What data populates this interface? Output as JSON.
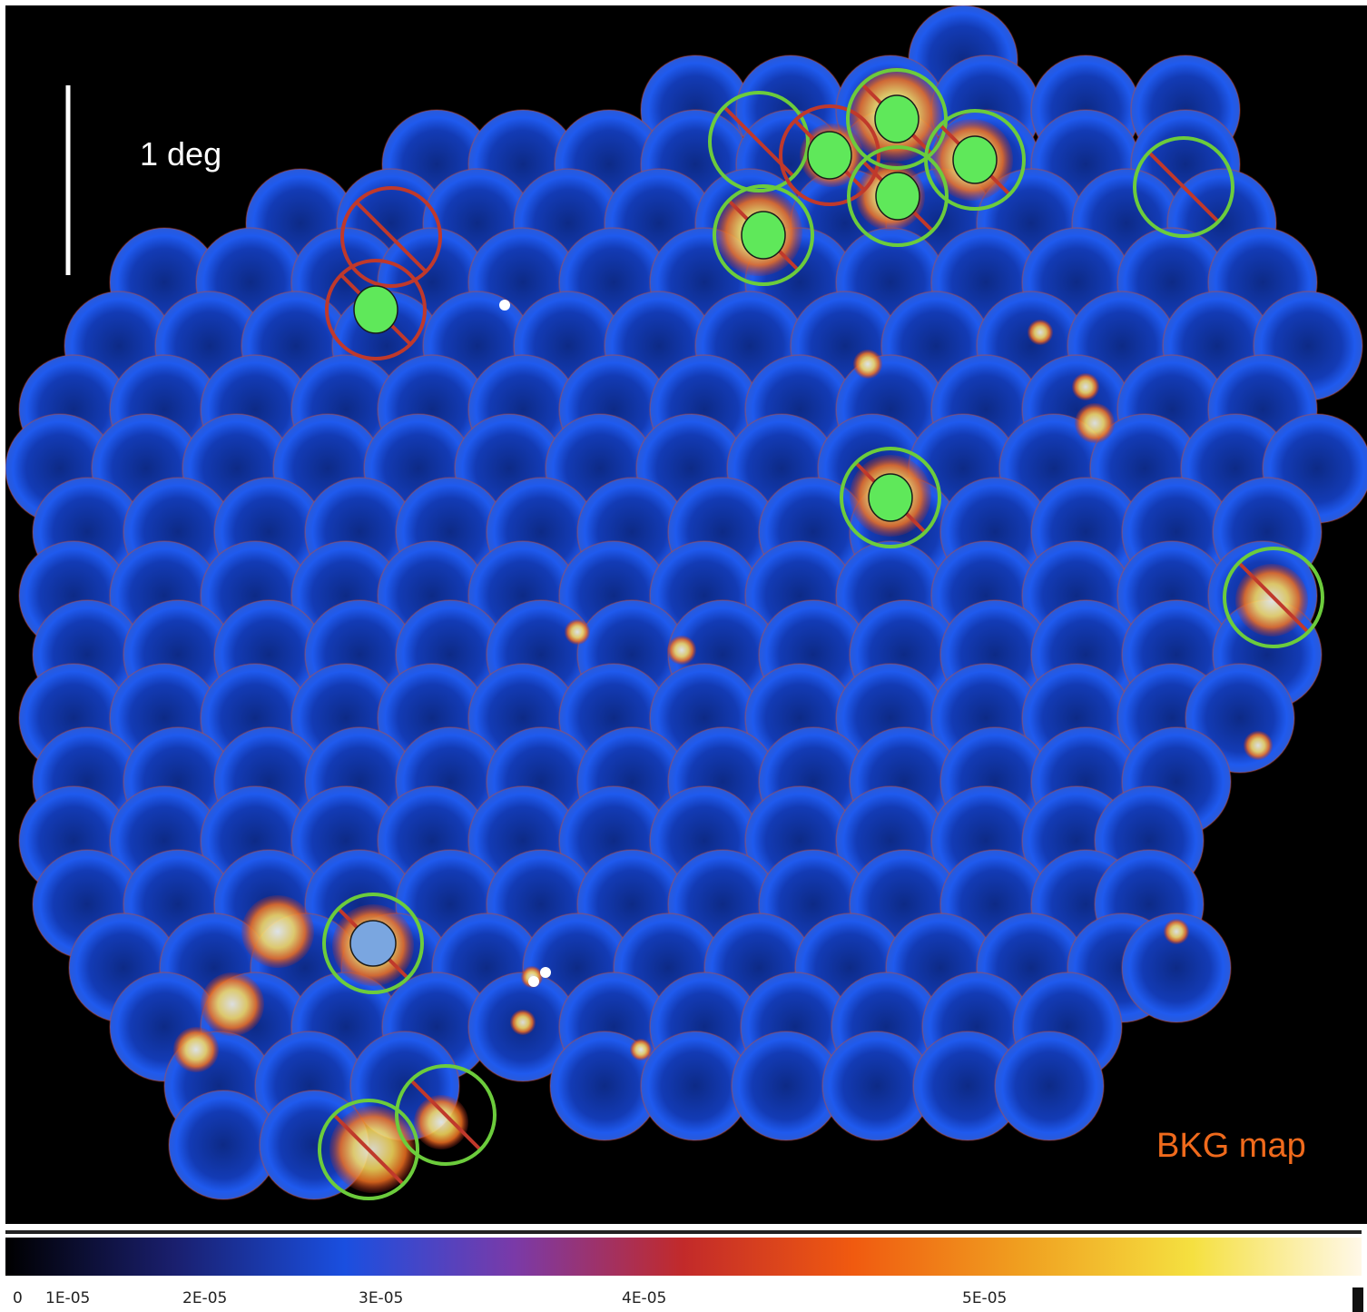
{
  "map": {
    "scale_label": "1 deg",
    "map_label": "BKG map",
    "colors": {
      "background": "#000000",
      "tile_fill": "#1747c8",
      "tile_rim": "#2a66ff",
      "hot": "#e24a1a",
      "selection_ring": "#6ccc3c",
      "excluded_ring": "#c0392b",
      "source_marker": "#5fe85a",
      "blue_marker": "#7aa6e0"
    }
  },
  "colorbar": {
    "ticks": [
      "0",
      "1E-05",
      "2E-05",
      "3E-05",
      "4E-05",
      "5E-05"
    ],
    "tick_values": [
      0,
      1e-05,
      2e-05,
      3e-05,
      4e-05,
      5e-05
    ],
    "range": [
      0,
      5.9e-05
    ],
    "stops": [
      "#000000",
      "#1a1f6e",
      "#1a4fe0",
      "#7a3aa8",
      "#c22a2a",
      "#f05a10",
      "#f0a020",
      "#f5e040",
      "#fff8e8"
    ]
  }
}
